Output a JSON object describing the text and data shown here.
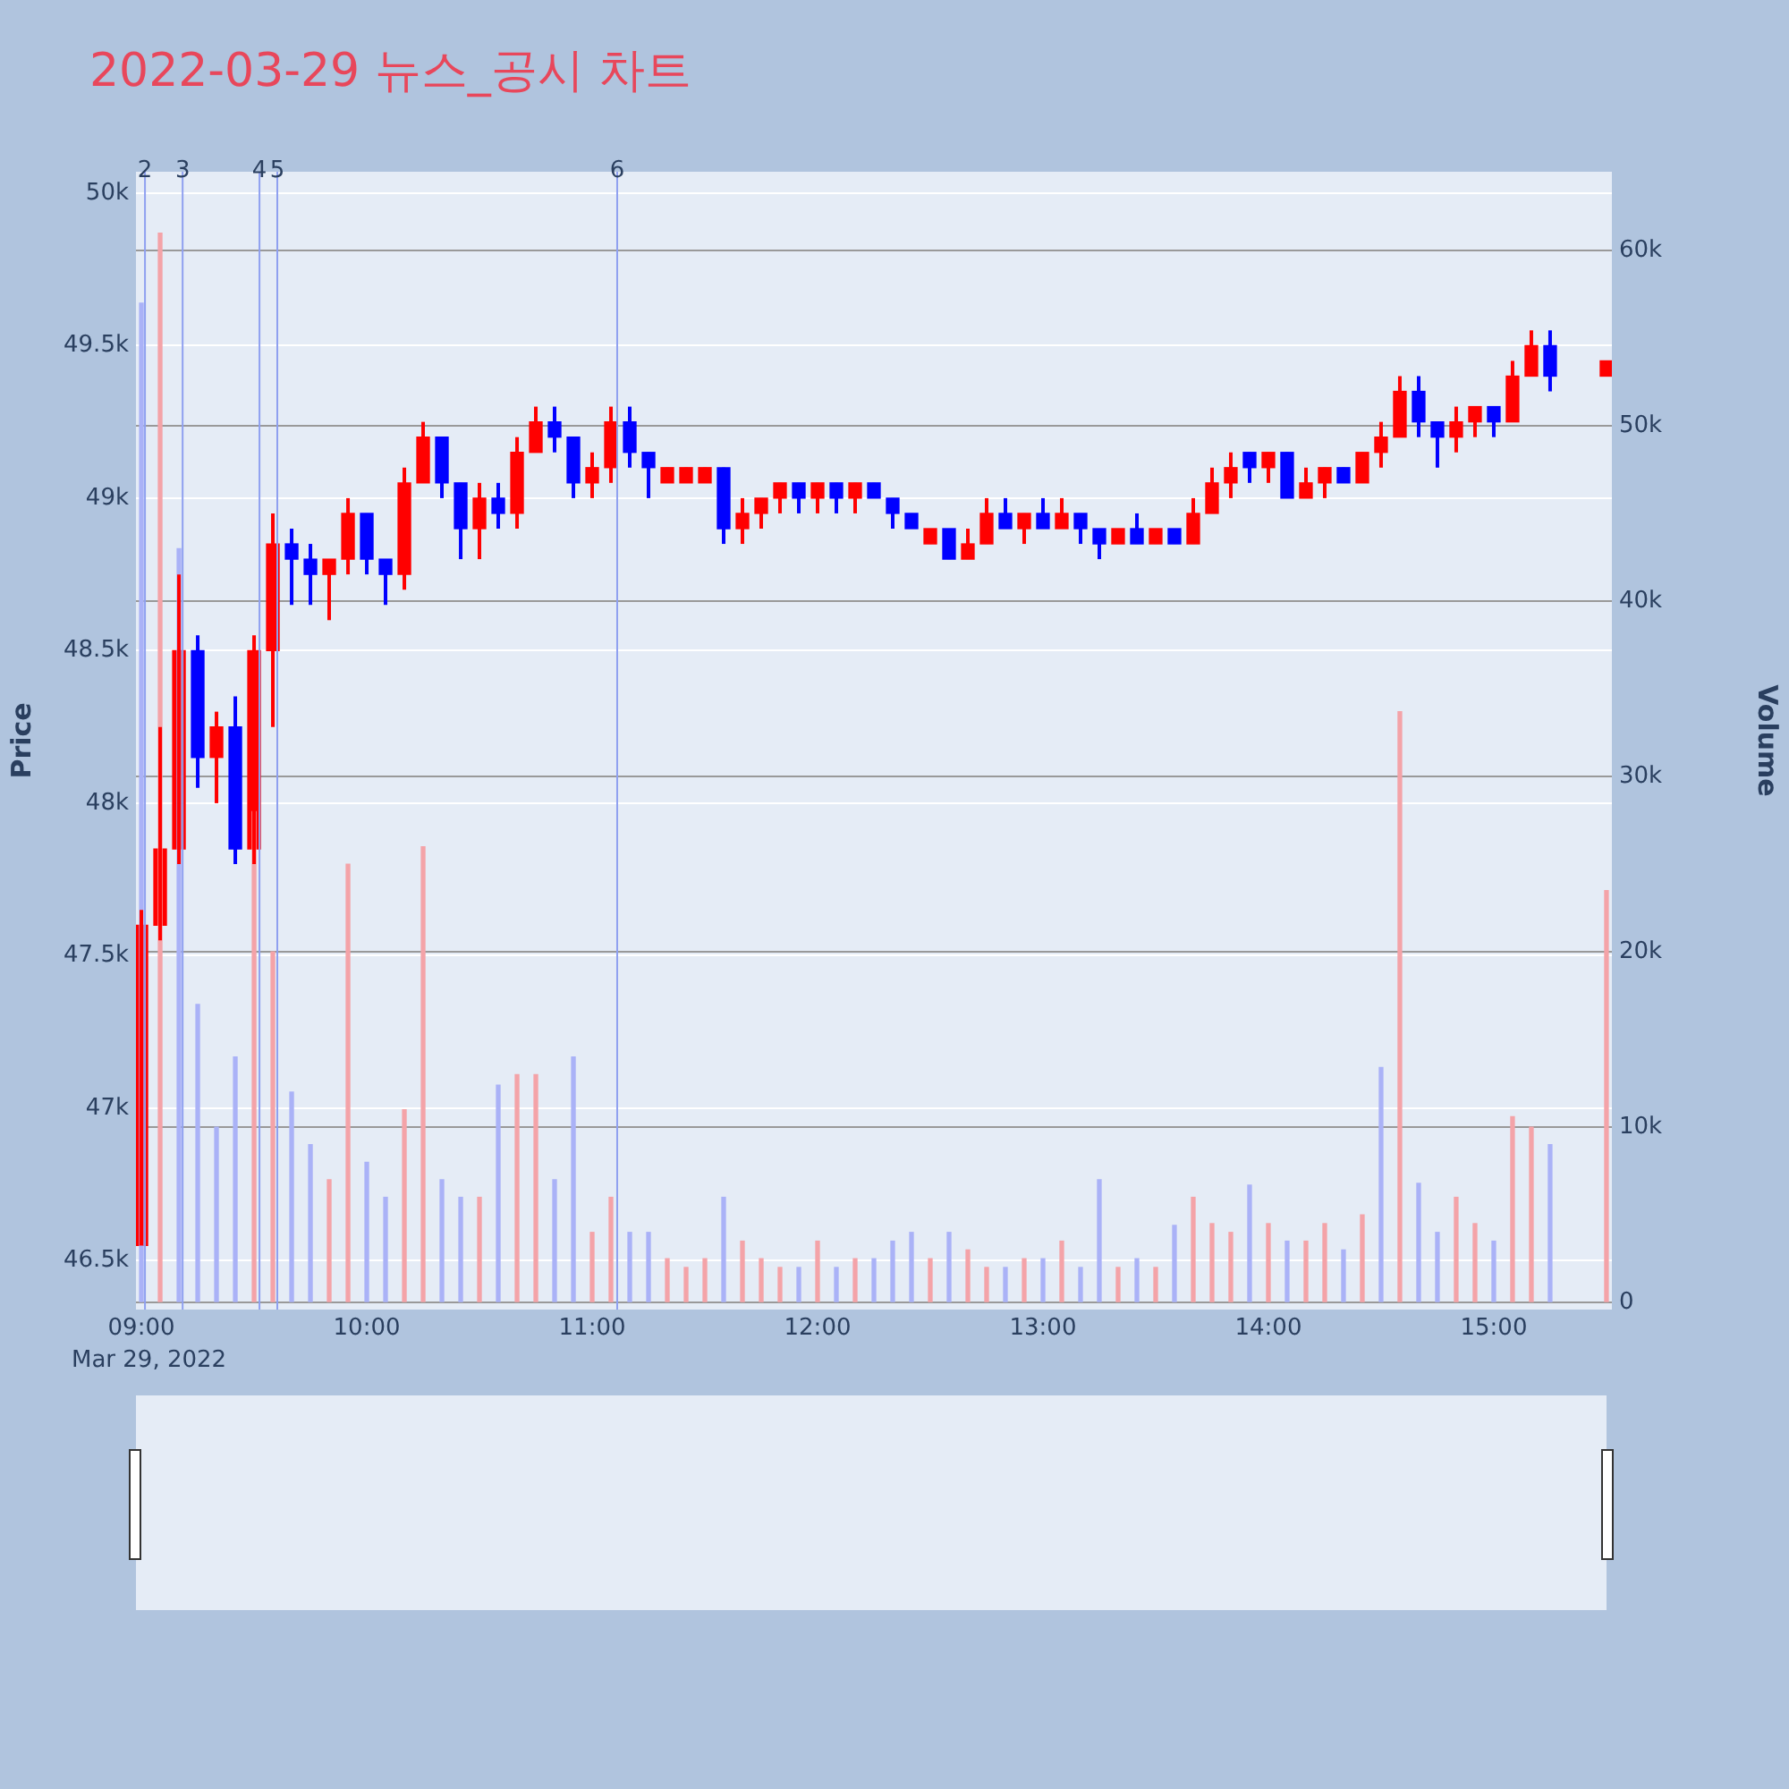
{
  "chart_data": {
    "type": "candlestick",
    "title": "2022-03-29 뉴스_공시 차트",
    "ylabel": "Price",
    "y2label": "Volume",
    "annotations": [
      "Mar 29, 2022",
      {
        "text": "2",
        "x": 9.016,
        "y": 50035
      },
      {
        "text": "3",
        "x": 9.183,
        "y": 50035
      },
      {
        "text": "4",
        "x": 9.524,
        "y": 50035
      },
      {
        "text": "5",
        "x": 9.603,
        "y": 50035
      },
      {
        "text": "6",
        "x": 11.111,
        "y": 50035
      }
    ],
    "x": [
      9,
      9.0833,
      9.1667,
      9.25,
      9.3333,
      9.4167,
      9.5,
      9.5833,
      9.6667,
      9.75,
      9.8333,
      9.9167,
      10,
      10.0833,
      10.1667,
      10.25,
      10.3333,
      10.4167,
      10.5,
      10.5833,
      10.6667,
      10.75,
      10.8333,
      10.9167,
      11,
      11.0833,
      11.1667,
      11.25,
      11.3333,
      11.4167,
      11.5,
      11.5833,
      11.6667,
      11.75,
      11.8333,
      11.9167,
      12,
      12.0833,
      12.1667,
      12.25,
      12.3333,
      12.4167,
      12.5,
      12.5833,
      12.6667,
      12.75,
      12.8333,
      12.9167,
      13,
      13.0833,
      13.1667,
      13.25,
      13.3333,
      13.4167,
      13.5,
      13.5833,
      13.6667,
      13.75,
      13.8333,
      13.9167,
      14,
      14.0833,
      14.1667,
      14.25,
      14.3333,
      14.4167,
      14.5,
      14.5833,
      14.6667,
      14.75,
      14.8333,
      14.9167,
      15,
      15.0833,
      15.1667,
      15.25,
      15.5
    ],
    "series": [
      {
        "type": "candlestick",
        "ohlc": [
          [
            46550,
            47650,
            46550,
            47600
          ],
          [
            47600,
            48250,
            47550,
            47850
          ],
          [
            47850,
            48750,
            47800,
            48500
          ],
          [
            48500,
            48550,
            48050,
            48150
          ],
          [
            48150,
            48300,
            48000,
            48250
          ],
          [
            48250,
            48350,
            47800,
            47850
          ],
          [
            47850,
            48550,
            47800,
            48500
          ],
          [
            48500,
            48950,
            48250,
            48850
          ],
          [
            48850,
            48900,
            48650,
            48800
          ],
          [
            48800,
            48850,
            48650,
            48750
          ],
          [
            48750,
            48800,
            48600,
            48800
          ],
          [
            48800,
            49000,
            48750,
            48950
          ],
          [
            48950,
            48950,
            48750,
            48800
          ],
          [
            48800,
            48800,
            48650,
            48750
          ],
          [
            48750,
            49100,
            48700,
            49050
          ],
          [
            49050,
            49250,
            49050,
            49200
          ],
          [
            49200,
            49200,
            49000,
            49050
          ],
          [
            49050,
            49050,
            48800,
            48900
          ],
          [
            48900,
            49050,
            48800,
            49000
          ],
          [
            49000,
            49050,
            48900,
            48950
          ],
          [
            48950,
            49200,
            48900,
            49150
          ],
          [
            49150,
            49300,
            49150,
            49250
          ],
          [
            49250,
            49300,
            49150,
            49200
          ],
          [
            49200,
            49200,
            49000,
            49050
          ],
          [
            49050,
            49150,
            49000,
            49100
          ],
          [
            49100,
            49300,
            49050,
            49250
          ],
          [
            49250,
            49300,
            49100,
            49150
          ],
          [
            49150,
            49150,
            49000,
            49100
          ],
          [
            49050,
            49100,
            49050,
            49100
          ],
          [
            49050,
            49100,
            49050,
            49100
          ],
          [
            49050,
            49100,
            49050,
            49100
          ],
          [
            49100,
            49100,
            48850,
            48900
          ],
          [
            48900,
            49000,
            48850,
            48950
          ],
          [
            48950,
            49000,
            48900,
            49000
          ],
          [
            49000,
            49050,
            48950,
            49050
          ],
          [
            49050,
            49050,
            48950,
            49000
          ],
          [
            49000,
            49050,
            48950,
            49050
          ],
          [
            49050,
            49050,
            48950,
            49000
          ],
          [
            49000,
            49050,
            48950,
            49050
          ],
          [
            49050,
            49050,
            49000,
            49000
          ],
          [
            49000,
            49000,
            48900,
            48950
          ],
          [
            48950,
            48950,
            48900,
            48900
          ],
          [
            48850,
            48900,
            48850,
            48900
          ],
          [
            48900,
            48900,
            48800,
            48800
          ],
          [
            48800,
            48900,
            48800,
            48850
          ],
          [
            48850,
            49000,
            48850,
            48950
          ],
          [
            48950,
            49000,
            48900,
            48900
          ],
          [
            48900,
            48950,
            48850,
            48950
          ],
          [
            48950,
            49000,
            48900,
            48900
          ],
          [
            48900,
            49000,
            48900,
            48950
          ],
          [
            48950,
            48950,
            48850,
            48900
          ],
          [
            48900,
            48900,
            48800,
            48850
          ],
          [
            48850,
            48900,
            48850,
            48900
          ],
          [
            48900,
            48950,
            48850,
            48850
          ],
          [
            48850,
            48900,
            48850,
            48900
          ],
          [
            48900,
            48900,
            48850,
            48850
          ],
          [
            48850,
            49000,
            48850,
            48950
          ],
          [
            48950,
            49100,
            48950,
            49050
          ],
          [
            49050,
            49150,
            49000,
            49100
          ],
          [
            49150,
            49150,
            49050,
            49100
          ],
          [
            49100,
            49150,
            49050,
            49150
          ],
          [
            49150,
            49150,
            49000,
            49000
          ],
          [
            49000,
            49100,
            49000,
            49050
          ],
          [
            49050,
            49100,
            49000,
            49100
          ],
          [
            49100,
            49100,
            49050,
            49050
          ],
          [
            49050,
            49150,
            49050,
            49150
          ],
          [
            49150,
            49250,
            49100,
            49200
          ],
          [
            49200,
            49400,
            49200,
            49350
          ],
          [
            49350,
            49400,
            49200,
            49250
          ],
          [
            49250,
            49250,
            49100,
            49200
          ],
          [
            49200,
            49300,
            49150,
            49250
          ],
          [
            49250,
            49300,
            49200,
            49300
          ],
          [
            49300,
            49300,
            49200,
            49250
          ],
          [
            49250,
            49450,
            49250,
            49400
          ],
          [
            49400,
            49550,
            49400,
            49500
          ],
          [
            49500,
            49550,
            49350,
            49400
          ],
          [
            49400,
            49450,
            49400,
            49450
          ]
        ],
        "colors": [
          "#ff0000",
          "#ff0000",
          "#ff0000",
          "#0000ff",
          "#ff0000",
          "#0000ff",
          "#ff0000",
          "#ff0000",
          "#0000ff",
          "#0000ff",
          "#ff0000",
          "#ff0000",
          "#0000ff",
          "#0000ff",
          "#ff0000",
          "#ff0000",
          "#0000ff",
          "#0000ff",
          "#ff0000",
          "#0000ff",
          "#ff0000",
          "#ff0000",
          "#0000ff",
          "#0000ff",
          "#ff0000",
          "#ff0000",
          "#0000ff",
          "#0000ff",
          "#ff0000",
          "#ff0000",
          "#ff0000",
          "#0000ff",
          "#ff0000",
          "#ff0000",
          "#ff0000",
          "#0000ff",
          "#ff0000",
          "#0000ff",
          "#ff0000",
          "#0000ff",
          "#0000ff",
          "#0000ff",
          "#ff0000",
          "#0000ff",
          "#ff0000",
          "#ff0000",
          "#0000ff",
          "#ff0000",
          "#0000ff",
          "#ff0000",
          "#0000ff",
          "#0000ff",
          "#ff0000",
          "#0000ff",
          "#ff0000",
          "#0000ff",
          "#ff0000",
          "#ff0000",
          "#ff0000",
          "#0000ff",
          "#ff0000",
          "#0000ff",
          "#ff0000",
          "#ff0000",
          "#0000ff",
          "#ff0000",
          "#ff0000",
          "#ff0000",
          "#0000ff",
          "#0000ff",
          "#ff0000",
          "#ff0000",
          "#0000ff",
          "#ff0000",
          "#ff0000",
          "#0000ff",
          "#ff0000"
        ]
      },
      {
        "type": "bar",
        "axis": "y2",
        "values": [
          57000,
          61000,
          43000,
          17000,
          10000,
          14000,
          28000,
          20000,
          12000,
          9000,
          7000,
          25000,
          8000,
          6000,
          11000,
          26000,
          7000,
          6000,
          6000,
          12400,
          13000,
          13000,
          7000,
          14000,
          4000,
          6000,
          4000,
          4000,
          2500,
          2000,
          2500,
          6000,
          3500,
          2500,
          2000,
          2000,
          3500,
          2000,
          2500,
          2500,
          3500,
          4000,
          2500,
          4000,
          3000,
          2000,
          2000,
          2500,
          2500,
          3500,
          2000,
          7000,
          2000,
          2500,
          2000,
          4400,
          6000,
          4500,
          4000,
          6700,
          4500,
          3500,
          3500,
          4500,
          3000,
          5000,
          13400,
          33700,
          6800,
          4000,
          6000,
          4500,
          3500,
          10600,
          10000,
          9000,
          23500
        ],
        "colors": [
          "#aab2f7",
          "#f4a3a8",
          "#aab2f7",
          "#aab2f7",
          "#aab2f7",
          "#aab2f7",
          "#f4a3a8",
          "#f4a3a8",
          "#aab2f7",
          "#aab2f7",
          "#f4a3a8",
          "#f4a3a8",
          "#aab2f7",
          "#aab2f7",
          "#f4a3a8",
          "#f4a3a8",
          "#aab2f7",
          "#aab2f7",
          "#f4a3a8",
          "#aab2f7",
          "#f4a3a8",
          "#f4a3a8",
          "#aab2f7",
          "#aab2f7",
          "#f4a3a8",
          "#f4a3a8",
          "#aab2f7",
          "#aab2f7",
          "#f4a3a8",
          "#f4a3a8",
          "#f4a3a8",
          "#aab2f7",
          "#f4a3a8",
          "#f4a3a8",
          "#f4a3a8",
          "#aab2f7",
          "#f4a3a8",
          "#aab2f7",
          "#f4a3a8",
          "#aab2f7",
          "#aab2f7",
          "#aab2f7",
          "#f4a3a8",
          "#aab2f7",
          "#f4a3a8",
          "#f4a3a8",
          "#aab2f7",
          "#f4a3a8",
          "#aab2f7",
          "#f4a3a8",
          "#aab2f7",
          "#aab2f7",
          "#f4a3a8",
          "#aab2f7",
          "#f4a3a8",
          "#aab2f7",
          "#f4a3a8",
          "#f4a3a8",
          "#f4a3a8",
          "#aab2f7",
          "#f4a3a8",
          "#aab2f7",
          "#f4a3a8",
          "#f4a3a8",
          "#aab2f7",
          "#f4a3a8",
          "#aab2f7",
          "#f4a3a8",
          "#aab2f7",
          "#aab2f7",
          "#f4a3a8",
          "#f4a3a8",
          "#aab2f7",
          "#f4a3a8",
          "#f4a3a8",
          "#aab2f7",
          "#f4a3a8"
        ]
      }
    ],
    "xlim": [
      8.976,
      15.524
    ],
    "xticks": [
      {
        "value": 9,
        "label": "09:00"
      },
      {
        "value": 10,
        "label": "10:00"
      },
      {
        "value": 11,
        "label": "11:00"
      },
      {
        "value": 12,
        "label": "12:00"
      },
      {
        "value": 13,
        "label": "13:00"
      },
      {
        "value": 14,
        "label": "14:00"
      },
      {
        "value": 15,
        "label": "15:00"
      }
    ],
    "ylim": [
      46340,
      50070
    ],
    "yticks": [
      {
        "value": 46500,
        "label": "46.5k"
      },
      {
        "value": 47000,
        "label": "47k"
      },
      {
        "value": 47500,
        "label": "47.5k"
      },
      {
        "value": 48000,
        "label": "48k"
      },
      {
        "value": 48500,
        "label": "48.5k"
      },
      {
        "value": 49000,
        "label": "49k"
      },
      {
        "value": 49500,
        "label": "49.5k"
      },
      {
        "value": 50000,
        "label": "50k"
      }
    ],
    "y2lim": [
      -400,
      64500
    ],
    "y2ticks": [
      0,
      {
        "value": 10000,
        "label": "10k"
      },
      {
        "value": 20000,
        "label": "20k"
      },
      {
        "value": 30000,
        "label": "30k"
      },
      {
        "value": 40000,
        "label": "40k"
      },
      {
        "value": 50000,
        "label": "50k"
      },
      {
        "value": 60000,
        "label": "60k"
      }
    ],
    "ref_lines": [
      {
        "axis": "x",
        "value": 9.016,
        "color": "#8fa0f0"
      },
      {
        "axis": "x",
        "value": 9.183,
        "color": "#8fa0f0"
      },
      {
        "axis": "x",
        "value": 9.524,
        "color": "#8fa0f0"
      },
      {
        "axis": "x",
        "value": 9.603,
        "color": "#8fa0f0"
      },
      {
        "axis": "x",
        "value": 11.111,
        "color": "#8fa0f0"
      }
    ],
    "grid": "y",
    "legend": false
  }
}
